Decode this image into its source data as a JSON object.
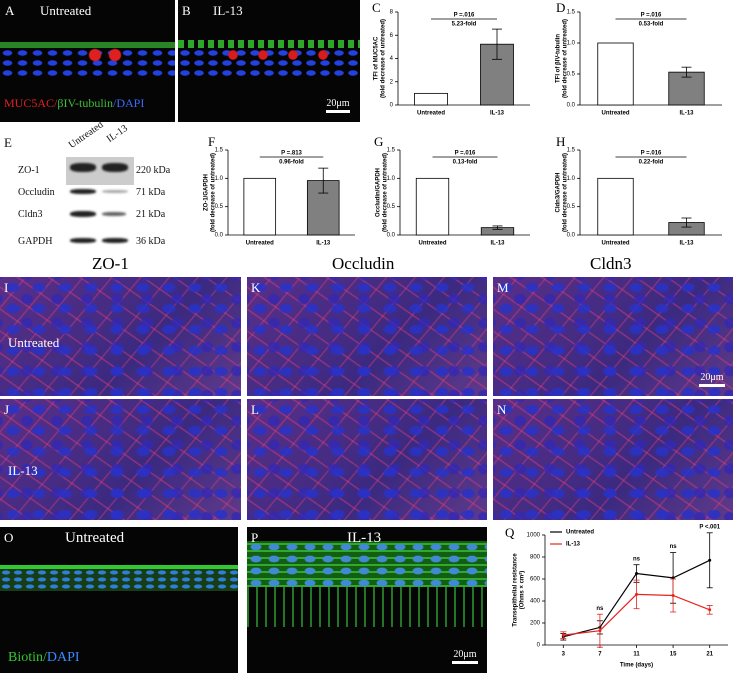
{
  "figure": {
    "A": {
      "letter": "A",
      "caption": "Untreated"
    },
    "B": {
      "letter": "B",
      "caption": "IL-13",
      "scale": "20μm"
    },
    "stain_top": [
      "MUC5AC/",
      "βIV-tubulin",
      "/DAPI"
    ],
    "E": {
      "letter": "E",
      "lanes": [
        "Untreated",
        "IL-13"
      ],
      "rows": [
        {
          "protein": "ZO-1",
          "size": "220 kDa"
        },
        {
          "protein": "Occludin",
          "size": "71 kDa"
        },
        {
          "protein": "Cldn3",
          "size": "21 kDa"
        },
        {
          "protein": "GAPDH",
          "size": "36 kDa"
        }
      ]
    },
    "columns": [
      "ZO-1",
      "Occludin",
      "Cldn3"
    ],
    "I": {
      "letter": "I",
      "caption": "Untreated"
    },
    "K": {
      "letter": "K"
    },
    "M": {
      "letter": "M",
      "scale": "20μm"
    },
    "J": {
      "letter": "J",
      "caption": "IL-13"
    },
    "L": {
      "letter": "L"
    },
    "N": {
      "letter": "N"
    },
    "O": {
      "letter": "O",
      "caption": "Untreated"
    },
    "P": {
      "letter": "P",
      "caption": "IL-13",
      "scale": "20μm"
    },
    "stain_bottom": [
      "Biotin/",
      "DAPI"
    ]
  },
  "chart_data": [
    {
      "type": "bar",
      "panel": "C",
      "ylabel": [
        "TFI of MUC5AC",
        "(fold decrease of untreated)"
      ],
      "categories": [
        "Untreated",
        "IL-13"
      ],
      "values": [
        1,
        5.23
      ],
      "errors": [
        null,
        1.3
      ],
      "colors": [
        "#ffffff",
        "#808080"
      ],
      "ylim": [
        0,
        8
      ],
      "yticks": [
        0,
        2,
        4,
        6,
        8
      ],
      "p_label": "P =.016",
      "fold_label": "5.23-fold"
    },
    {
      "type": "bar",
      "panel": "D",
      "ylabel": [
        "TFI of βIV-tubulin",
        "(fold decrease of untreated)"
      ],
      "categories": [
        "Untreated",
        "IL-13"
      ],
      "values": [
        1,
        0.53
      ],
      "errors": [
        null,
        0.08
      ],
      "colors": [
        "#ffffff",
        "#808080"
      ],
      "ylim": [
        0,
        1.5
      ],
      "yticks": [
        {
          "value": 0,
          "label": "0.0"
        },
        {
          "value": 0.5,
          "label": "0.5"
        },
        {
          "value": 1,
          "label": "1.0"
        },
        {
          "value": 1.5,
          "label": "1.5"
        }
      ],
      "p_label": "P =.016",
      "fold_label": "0.53-fold"
    },
    {
      "type": "bar",
      "panel": "F",
      "ylabel": [
        "ZO-1/GAPDH",
        "(fold decrease of untreated)"
      ],
      "categories": [
        "Untreated",
        "IL-13"
      ],
      "values": [
        1,
        0.96
      ],
      "errors": [
        null,
        0.22
      ],
      "colors": [
        "#ffffff",
        "#808080"
      ],
      "ylim": [
        0,
        1.5
      ],
      "yticks": [
        {
          "value": 0,
          "label": "0.0"
        },
        {
          "value": 0.5,
          "label": "0.5"
        },
        {
          "value": 1,
          "label": "1.0"
        },
        {
          "value": 1.5,
          "label": "1.5"
        }
      ],
      "p_label": "P =.813",
      "fold_label": "0.96-fold"
    },
    {
      "type": "bar",
      "panel": "G",
      "ylabel": [
        "Occludin/GAPDH",
        "(fold decrease of untreated)"
      ],
      "categories": [
        "Untreated",
        "IL-13"
      ],
      "values": [
        1,
        0.13
      ],
      "errors": [
        null,
        0.03
      ],
      "colors": [
        "#ffffff",
        "#808080"
      ],
      "ylim": [
        0,
        1.5
      ],
      "yticks": [
        {
          "value": 0,
          "label": "0.0"
        },
        {
          "value": 0.5,
          "label": "0.5"
        },
        {
          "value": 1,
          "label": "1.0"
        },
        {
          "value": 1.5,
          "label": "1.5"
        }
      ],
      "p_label": "P =.016",
      "fold_label": "0.13-fold"
    },
    {
      "type": "bar",
      "panel": "H",
      "ylabel": [
        "Cldn3/GAPDH",
        "(fold decrease of untreated)"
      ],
      "categories": [
        "Untreated",
        "IL-13"
      ],
      "values": [
        1,
        0.22
      ],
      "errors": [
        null,
        0.08
      ],
      "colors": [
        "#ffffff",
        "#808080"
      ],
      "ylim": [
        0,
        1.5
      ],
      "yticks": [
        {
          "value": 0,
          "label": "0.0"
        },
        {
          "value": 0.5,
          "label": "0.5"
        },
        {
          "value": 1,
          "label": "1.0"
        },
        {
          "value": 1.5,
          "label": "1.5"
        }
      ],
      "p_label": "P =.016",
      "fold_label": "0.22-fold"
    },
    {
      "type": "line",
      "panel": "Q",
      "ylabel": [
        "Transepithelial resistance",
        "(Ohms × cm²)"
      ],
      "xlabel": "Time (days)",
      "categories": [
        "3",
        "7",
        "11",
        "15",
        "21"
      ],
      "series": [
        {
          "name": "Untreated",
          "color": "#000000",
          "values": [
            75,
            160,
            650,
            610,
            770
          ],
          "errors": [
            30,
            60,
            80,
            230,
            250
          ]
        },
        {
          "name": "IL-13",
          "color": "#e8231e",
          "values": [
            90,
            130,
            460,
            450,
            320
          ],
          "errors": [
            30,
            150,
            130,
            150,
            40
          ]
        }
      ],
      "annotations": [
        null,
        "ns",
        "ns",
        "ns",
        "P <.001"
      ],
      "ylim": [
        0,
        1000
      ],
      "yticks": [
        0,
        200,
        400,
        600,
        800,
        1000
      ],
      "legend": "top-left"
    }
  ]
}
